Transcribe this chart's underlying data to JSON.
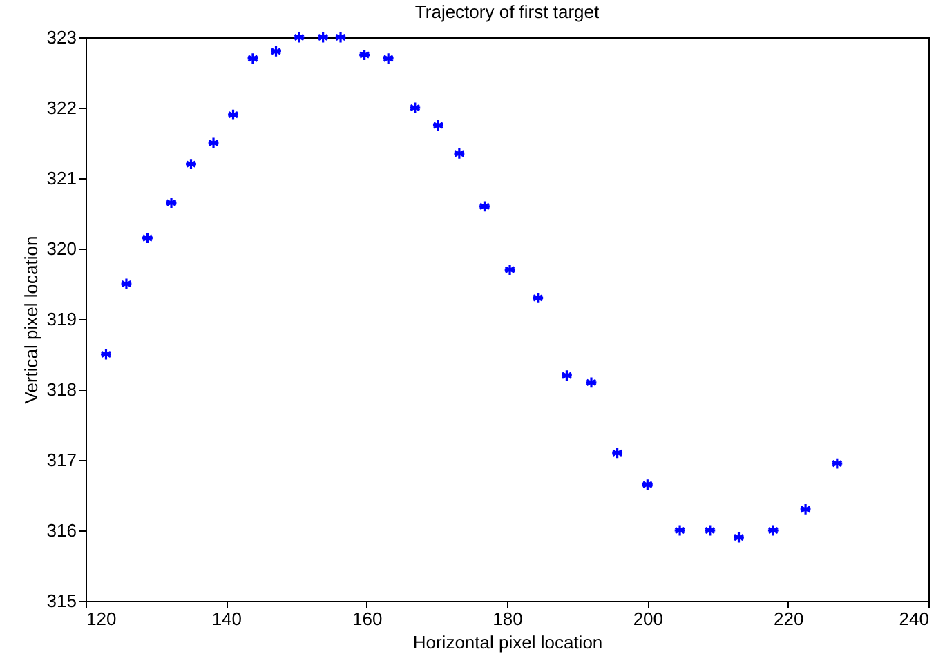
{
  "chart_data": {
    "type": "scatter",
    "title": "Trajectory of first target",
    "xlabel": "Horizontal pixel location",
    "ylabel": "Vertical pixel location",
    "x": [
      122.9,
      125.8,
      128.8,
      132.2,
      135.0,
      138.2,
      141.0,
      143.8,
      147.1,
      150.4,
      153.8,
      156.3,
      159.7,
      163.1,
      166.9,
      170.2,
      173.2,
      176.8,
      180.4,
      184.4,
      188.5,
      192.0,
      195.7,
      200.0,
      204.6,
      208.9,
      213.0,
      217.9,
      222.5,
      227.0
    ],
    "series": [
      {
        "color": "#0000ff",
        "values": [
          318.5,
          319.5,
          320.15,
          320.65,
          321.2,
          321.5,
          321.9,
          322.7,
          322.8,
          323.0,
          323.0,
          323.0,
          322.75,
          322.7,
          322.0,
          321.75,
          321.35,
          320.6,
          319.7,
          319.3,
          318.2,
          318.1,
          317.1,
          316.65,
          316.0,
          316.0,
          315.9,
          316.0,
          316.3,
          316.95
        ]
      }
    ],
    "xlim": [
      120,
      240
    ],
    "xticks": [
      120,
      140,
      160,
      180,
      200,
      220,
      240
    ],
    "ylim": [
      315,
      323
    ],
    "yticks": [
      315,
      316,
      317,
      318,
      319,
      320,
      321,
      322,
      323
    ],
    "grid": false,
    "marker": "cross"
  }
}
